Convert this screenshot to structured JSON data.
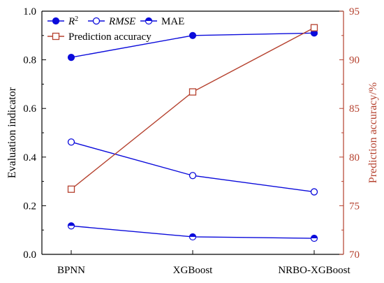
{
  "chart_data": {
    "type": "line",
    "categories": [
      "BPNN",
      "XGBoost",
      "NRBO-XGBoost"
    ],
    "series": [
      {
        "name": "R²",
        "legend_main": "R",
        "legend_sup": "2",
        "axis": "left",
        "marker": "filled-circle",
        "color": "#0b0bdb",
        "values": [
          0.81,
          0.9,
          0.91
        ]
      },
      {
        "name": "RMSE",
        "axis": "left",
        "marker": "open-circle",
        "color": "#0b0bdb",
        "values": [
          0.462,
          0.324,
          0.257
        ]
      },
      {
        "name": "MAE",
        "axis": "left",
        "marker": "half-filled-circle",
        "color": "#0b0bdb",
        "values": [
          0.117,
          0.072,
          0.066
        ]
      },
      {
        "name": "Prediction accuracy",
        "axis": "right",
        "marker": "open-square",
        "color": "#b5412e",
        "values": [
          76.7,
          86.7,
          93.3
        ]
      }
    ],
    "ylabel": "Evaluation indicator",
    "y2label": "Prediction accuracy/%",
    "ylim": [
      0,
      1.0
    ],
    "y2lim": [
      70,
      95
    ],
    "yticks": [
      "0.0",
      "0.2",
      "0.4",
      "0.6",
      "0.8",
      "1.0"
    ],
    "y2ticks": [
      "70",
      "75",
      "80",
      "85",
      "90",
      "95"
    ],
    "grid": false,
    "legend_position": "top-left"
  },
  "colors": {
    "left_axis": "#000000",
    "right_axis": "#b5412e"
  }
}
